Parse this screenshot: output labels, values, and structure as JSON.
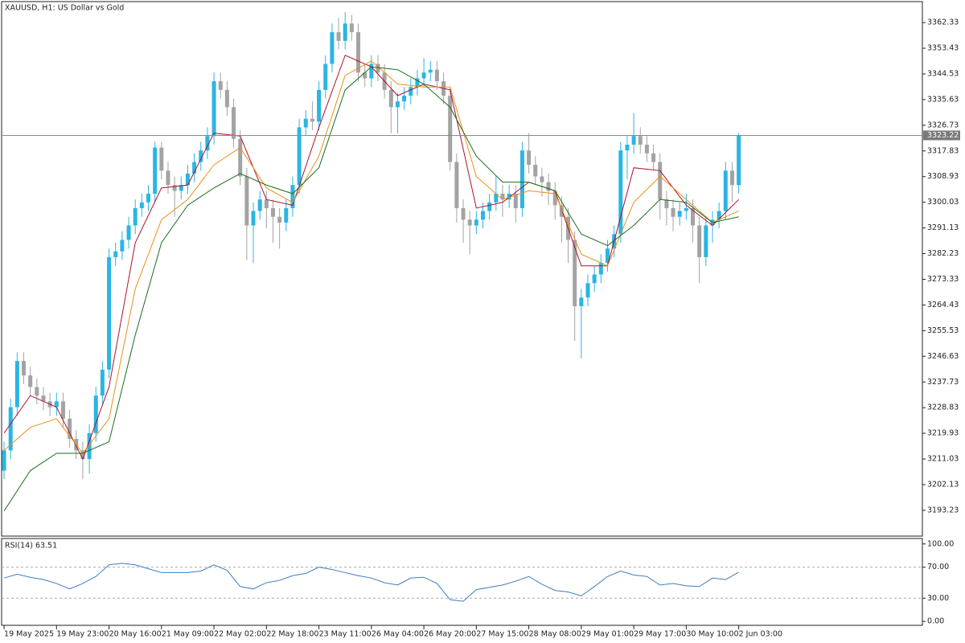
{
  "chart_data": [
    {
      "type": "candlestick",
      "title": "XAUUSD, H1:  US Dollar vs Gold",
      "up_color": "#2bb5e3",
      "down_color": "#a3a3a3",
      "x": [
        0,
        2,
        4,
        6,
        8,
        10,
        12,
        14,
        16,
        18,
        20,
        22,
        24,
        26,
        28,
        30,
        32,
        34,
        36,
        38,
        40,
        42,
        44,
        46,
        48,
        50,
        52,
        54,
        56,
        58,
        60,
        62,
        64,
        66,
        68,
        70,
        72,
        74,
        76,
        78,
        80,
        82,
        84,
        86,
        88,
        90,
        92,
        94,
        96,
        98,
        100,
        102,
        104,
        106,
        108,
        110,
        112,
        114,
        116,
        118,
        120,
        122,
        124,
        126,
        128,
        130,
        132,
        134,
        136,
        138,
        140,
        142,
        144,
        146,
        148,
        150,
        152,
        154,
        156,
        158,
        160,
        162,
        164,
        166,
        168,
        170,
        172,
        174,
        176,
        178,
        180,
        182,
        184,
        186,
        188,
        190,
        192,
        194,
        196,
        198,
        200,
        202,
        204,
        206,
        208,
        210,
        212,
        214,
        216,
        218,
        220,
        222,
        224
      ],
      "open": [
        3207,
        3214,
        3229,
        3245,
        3240,
        3236,
        3233,
        3231,
        3229,
        3231,
        3225,
        3218,
        3214,
        3211,
        3220,
        3233,
        3242,
        3281,
        3283,
        3287,
        3292,
        3298,
        3300,
        3303,
        3319,
        3311,
        3306,
        3304,
        3306,
        3310,
        3314,
        3318,
        3323,
        3342,
        3339,
        3333,
        3322,
        3309,
        3292,
        3297,
        3301,
        3298,
        3295,
        3293,
        3298,
        3306,
        3326,
        3329,
        3328,
        3339,
        3348,
        3359,
        3356,
        3362,
        3359,
        3345,
        3343,
        3348,
        3345,
        3339,
        3333,
        3335,
        3337,
        3340,
        3343,
        3345,
        3346,
        3342,
        3337,
        3314,
        3298,
        3294,
        3292,
        3294,
        3297,
        3300,
        3303,
        3301,
        3303,
        3298,
        3318,
        3313,
        3309,
        3307,
        3304,
        3299,
        3295,
        3287,
        3264,
        3267,
        3272,
        3275,
        3279,
        3284,
        3289,
        3318,
        3320,
        3323,
        3320,
        3317,
        3314,
        3301,
        3298,
        3295,
        3297,
        3298,
        3292,
        3281,
        3292,
        3294,
        3297,
        3311,
        3306
      ],
      "high": [
        3217,
        3232,
        3248,
        3248,
        3243,
        3239,
        3236,
        3234,
        3234,
        3234,
        3228,
        3221,
        3217,
        3223,
        3236,
        3245,
        3284,
        3286,
        3290,
        3295,
        3301,
        3303,
        3306,
        3321,
        3321,
        3314,
        3309,
        3309,
        3313,
        3317,
        3321,
        3326,
        3345,
        3345,
        3342,
        3336,
        3325,
        3312,
        3300,
        3304,
        3304,
        3301,
        3298,
        3301,
        3309,
        3329,
        3332,
        3335,
        3342,
        3351,
        3362,
        3364,
        3366,
        3365,
        3362,
        3348,
        3351,
        3351,
        3348,
        3342,
        3338,
        3340,
        3343,
        3346,
        3350,
        3349,
        3349,
        3345,
        3340,
        3317,
        3301,
        3297,
        3297,
        3300,
        3303,
        3309,
        3306,
        3306,
        3306,
        3321,
        3324,
        3316,
        3312,
        3310,
        3307,
        3302,
        3298,
        3290,
        3270,
        3275,
        3278,
        3282,
        3287,
        3292,
        3321,
        3323,
        3331,
        3326,
        3323,
        3320,
        3317,
        3304,
        3301,
        3300,
        3303,
        3301,
        3295,
        3295,
        3297,
        3300,
        3314,
        3314,
        3324
      ],
      "low": [
        3204,
        3211,
        3226,
        3237,
        3233,
        3230,
        3228,
        3226,
        3226,
        3222,
        3215,
        3211,
        3204,
        3206,
        3217,
        3230,
        3239,
        3278,
        3280,
        3284,
        3289,
        3295,
        3297,
        3300,
        3308,
        3303,
        3295,
        3301,
        3303,
        3307,
        3311,
        3315,
        3320,
        3336,
        3330,
        3319,
        3306,
        3280,
        3279,
        3294,
        3291,
        3286,
        3284,
        3290,
        3295,
        3303,
        3323,
        3325,
        3325,
        3336,
        3345,
        3353,
        3353,
        3356,
        3342,
        3340,
        3340,
        3342,
        3336,
        3324,
        3324,
        3332,
        3334,
        3337,
        3340,
        3342,
        3339,
        3334,
        3311,
        3293,
        3286,
        3282,
        3289,
        3291,
        3294,
        3297,
        3295,
        3298,
        3293,
        3295,
        3310,
        3306,
        3302,
        3299,
        3294,
        3286,
        3279,
        3252,
        3246,
        3264,
        3269,
        3272,
        3276,
        3281,
        3286,
        3308,
        3317,
        3317,
        3314,
        3311,
        3294,
        3292,
        3290,
        3292,
        3294,
        3286,
        3272,
        3278,
        3286,
        3291,
        3294,
        3300,
        3303
      ],
      "close": [
        3214,
        3229,
        3245,
        3240,
        3236,
        3233,
        3231,
        3229,
        3231,
        3225,
        3218,
        3214,
        3211,
        3220,
        3233,
        3242,
        3281,
        3283,
        3287,
        3292,
        3298,
        3300,
        3303,
        3319,
        3311,
        3306,
        3304,
        3306,
        3310,
        3314,
        3318,
        3323,
        3342,
        3339,
        3333,
        3322,
        3309,
        3292,
        3297,
        3301,
        3298,
        3295,
        3293,
        3298,
        3306,
        3326,
        3329,
        3328,
        3339,
        3348,
        3359,
        3356,
        3362,
        3359,
        3345,
        3343,
        3348,
        3345,
        3339,
        3333,
        3335,
        3337,
        3340,
        3343,
        3345,
        3346,
        3342,
        3337,
        3314,
        3298,
        3294,
        3292,
        3294,
        3297,
        3300,
        3303,
        3301,
        3303,
        3298,
        3318,
        3313,
        3309,
        3307,
        3304,
        3299,
        3295,
        3287,
        3264,
        3267,
        3272,
        3275,
        3279,
        3284,
        3289,
        3318,
        3320,
        3323,
        3320,
        3317,
        3314,
        3301,
        3298,
        3295,
        3297,
        3298,
        3292,
        3281,
        3292,
        3294,
        3297,
        3311,
        3306,
        3323.22
      ],
      "series": [
        {
          "color": "#b0102c",
          "x": [
            0,
            8,
            16,
            24,
            32,
            40,
            48,
            56,
            64,
            72,
            80,
            88,
            96,
            104,
            112,
            120,
            128,
            136,
            144,
            152,
            160,
            168,
            176,
            184,
            192,
            200,
            208,
            216,
            224
          ],
          "values": [
            3220,
            3233,
            3229,
            3211,
            3236,
            3286,
            3305,
            3306,
            3324,
            3323,
            3301,
            3299,
            3326,
            3351,
            3347,
            3337,
            3341,
            3339,
            3298,
            3300,
            3307,
            3304,
            3278,
            3278,
            3312,
            3311,
            3299,
            3292,
            3301
          ]
        },
        {
          "color": "#e8901a",
          "x": [
            0,
            8,
            16,
            24,
            32,
            40,
            48,
            56,
            64,
            72,
            80,
            88,
            96,
            104,
            112,
            120,
            128,
            136,
            144,
            152,
            160,
            168,
            176,
            184,
            192,
            200,
            208,
            216,
            224
          ],
          "values": [
            3214,
            3222,
            3225,
            3213,
            3225,
            3270,
            3294,
            3301,
            3313,
            3319,
            3305,
            3300,
            3316,
            3344,
            3349,
            3341,
            3340,
            3340,
            3309,
            3301,
            3304,
            3303,
            3282,
            3278,
            3300,
            3309,
            3301,
            3293,
            3297
          ]
        },
        {
          "color": "#1c6e1c",
          "x": [
            0,
            8,
            16,
            24,
            32,
            40,
            48,
            56,
            64,
            72,
            80,
            88,
            96,
            104,
            112,
            120,
            128,
            136,
            144,
            152,
            160,
            168,
            176,
            184,
            192,
            200,
            208,
            216,
            224
          ],
          "values": [
            3193,
            3207,
            3213,
            3213,
            3217,
            3254,
            3286,
            3299,
            3305,
            3310,
            3306,
            3303,
            3312,
            3339,
            3347,
            3346,
            3341,
            3333,
            3316,
            3307,
            3307,
            3304,
            3289,
            3285,
            3292,
            3301,
            3300,
            3293,
            3295
          ]
        }
      ],
      "current_price": 3323.22,
      "xlim": [
        -0.75,
        280
      ],
      "ylim": [
        3184.3,
        3369.6
      ],
      "yticks": [
        3362.33,
        3353.43,
        3344.53,
        3335.63,
        3326.73,
        3317.83,
        3308.93,
        3300.03,
        3291.13,
        3282.23,
        3273.33,
        3264.43,
        3255.53,
        3246.63,
        3237.73,
        3228.83,
        3219.93,
        3211.03,
        3202.13,
        3193.23
      ],
      "xticks": [
        {
          "value": 0,
          "label": "19 May 2025"
        },
        {
          "value": 16,
          "label": "19 May 23:00"
        },
        {
          "value": 32,
          "label": "20 May 16:00"
        },
        {
          "value": 48,
          "label": "21 May 09:00"
        },
        {
          "value": 64,
          "label": "22 May 02:00"
        },
        {
          "value": 80,
          "label": "22 May 18:00"
        },
        {
          "value": 96,
          "label": "23 May 11:00"
        },
        {
          "value": 112,
          "label": "26 May 04:00"
        },
        {
          "value": 128,
          "label": "26 May 20:00"
        },
        {
          "value": 144,
          "label": "27 May 15:00"
        },
        {
          "value": 160,
          "label": "28 May 08:00"
        },
        {
          "value": 176,
          "label": "29 May 01:00"
        },
        {
          "value": 192,
          "label": "29 May 17:00"
        },
        {
          "value": 208,
          "label": "30 May 10:00"
        },
        {
          "value": 224,
          "label": "2 Jun 03:00"
        }
      ]
    },
    {
      "type": "line",
      "title": "RSI(14) 63.51",
      "color": "#3c7cc4",
      "x": [
        0,
        4,
        8,
        12,
        16,
        20,
        24,
        28,
        32,
        36,
        40,
        44,
        48,
        52,
        56,
        60,
        64,
        68,
        72,
        76,
        80,
        84,
        88,
        92,
        96,
        100,
        104,
        108,
        112,
        116,
        120,
        124,
        128,
        132,
        136,
        140,
        144,
        148,
        152,
        156,
        160,
        164,
        168,
        172,
        176,
        180,
        184,
        188,
        192,
        196,
        200,
        204,
        208,
        212,
        216,
        220,
        224
      ],
      "values": [
        56,
        61,
        57,
        54,
        49,
        42,
        49,
        58,
        73,
        75,
        73,
        68,
        63,
        63,
        63,
        65,
        73,
        66,
        45,
        42,
        50,
        53,
        59,
        62,
        70,
        67,
        63,
        59,
        56,
        50,
        47,
        56,
        57,
        49,
        28,
        26,
        41,
        44,
        47,
        52,
        58,
        48,
        40,
        38,
        33,
        45,
        58,
        65,
        60,
        58,
        47,
        49,
        46,
        45,
        56,
        54,
        63.51
      ],
      "xlim": [
        -0.75,
        280
      ],
      "ylim": [
        -5,
        107
      ],
      "yticks": [
        {
          "value": 100,
          "label": "100.00"
        },
        {
          "value": 70,
          "label": "70.00"
        },
        {
          "value": 30,
          "label": "30.00"
        },
        {
          "value": 0,
          "label": "0.00"
        }
      ],
      "levels": [
        70,
        30
      ]
    }
  ]
}
